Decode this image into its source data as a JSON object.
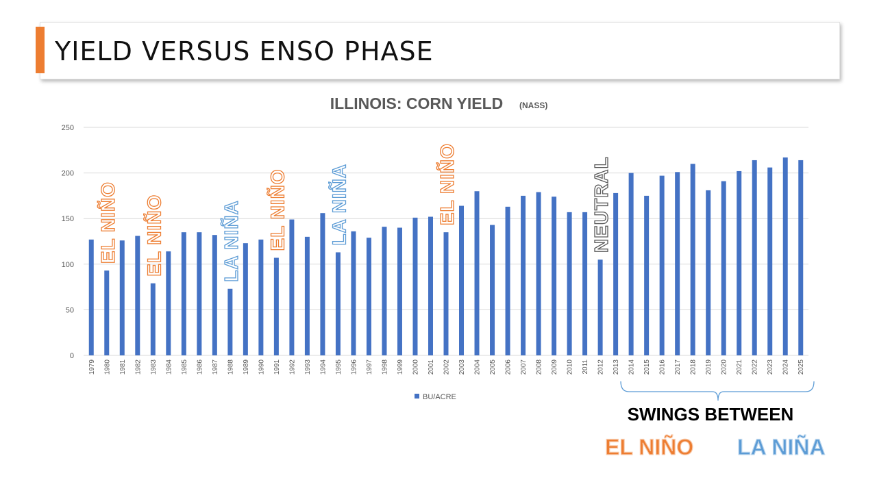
{
  "slide": {
    "title": "YIELD VERSUS ENSO PHASE",
    "accent_color": "#ed7d31"
  },
  "chart_data": {
    "type": "bar",
    "title": "ILLINOIS: CORN YIELD",
    "subtitle": "(NASS)",
    "xlabel": "",
    "ylabel": "",
    "ylim": [
      0,
      250
    ],
    "yticks": [
      0,
      50,
      100,
      150,
      200,
      250
    ],
    "grid": true,
    "legend_position": "bottom",
    "categories": [
      "1979",
      "1980",
      "1981",
      "1982",
      "1983",
      "1984",
      "1985",
      "1986",
      "1987",
      "1988",
      "1989",
      "1990",
      "1991",
      "1992",
      "1993",
      "1994",
      "1995",
      "1996",
      "1997",
      "1998",
      "1999",
      "2000",
      "2001",
      "2002",
      "2003",
      "2004",
      "2005",
      "2006",
      "2007",
      "2008",
      "2009",
      "2010",
      "2011",
      "2012",
      "2013",
      "2014",
      "2015",
      "2016",
      "2017",
      "2018",
      "2019",
      "2020",
      "2021",
      "2022",
      "2023",
      "2024",
      "2025"
    ],
    "series": [
      {
        "name": "BU/ACRE",
        "color": "#4472c4",
        "values": [
          127,
          93,
          126,
          131,
          79,
          114,
          135,
          135,
          132,
          73,
          123,
          127,
          107,
          149,
          130,
          156,
          113,
          136,
          129,
          141,
          140,
          151,
          152,
          135,
          164,
          180,
          143,
          163,
          175,
          179,
          174,
          157,
          157,
          105,
          178,
          200,
          175,
          197,
          201,
          210,
          181,
          191,
          202,
          214,
          206,
          217,
          214
        ]
      }
    ],
    "annotations": [
      {
        "text": "EL NIÑO",
        "year": "1980",
        "phase": "el-nino",
        "color": "#ed7d31"
      },
      {
        "text": "EL NIÑO",
        "year": "1983",
        "phase": "el-nino",
        "color": "#ed7d31"
      },
      {
        "text": "LA NIÑA",
        "year": "1988",
        "phase": "la-nina",
        "color": "#5b9bd5"
      },
      {
        "text": "EL NIÑO",
        "year": "1991",
        "phase": "el-nino",
        "color": "#ed7d31"
      },
      {
        "text": "LA NIÑA",
        "year": "1995",
        "phase": "la-nina",
        "color": "#5b9bd5"
      },
      {
        "text": "EL NIÑO",
        "year": "2002",
        "phase": "el-nino",
        "color": "#ed7d31"
      },
      {
        "text": "NEUTRAL",
        "year": "2012",
        "phase": "neutral",
        "color": "#595959"
      }
    ],
    "swings": {
      "label": "SWINGS BETWEEN",
      "from_year": "2013",
      "to_year": "2025",
      "el_nino_label": "EL NIÑO",
      "la_nina_label": "LA NIÑA",
      "el_nino_color": "#ed7d31",
      "la_nina_color": "#5b9bd5"
    }
  }
}
